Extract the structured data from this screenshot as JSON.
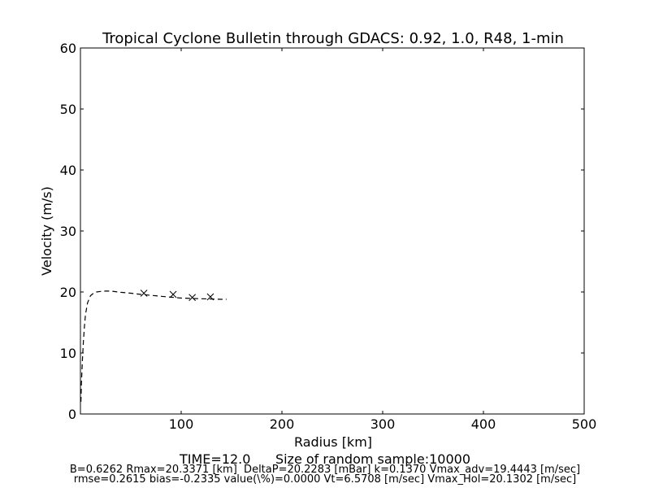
{
  "chart_data": {
    "type": "line",
    "title": "Tropical Cyclone Bulletin through GDACS: 0.92, 1.0, R48, 1-min",
    "xlabel": "Radius [km]",
    "ylabel": "Velocity (m/s)",
    "xlim": [
      0,
      500
    ],
    "ylim": [
      0,
      60
    ],
    "xticks": [
      100,
      200,
      300,
      400,
      500
    ],
    "yticks": [
      0,
      10,
      20,
      30,
      40,
      50,
      60
    ],
    "grid": false,
    "series": [
      {
        "style": "dashed-line",
        "color": "#000000",
        "x": [
          0.5,
          1,
          2,
          3,
          4,
          5,
          7,
          10,
          13,
          16,
          20,
          25,
          30,
          35,
          40,
          50,
          60,
          70,
          80,
          90,
          100,
          110,
          120,
          130,
          140,
          145
        ],
        "y": [
          2,
          5,
          9,
          12,
          14.5,
          16.3,
          18.2,
          19.4,
          19.8,
          20.0,
          20.1,
          20.15,
          20.15,
          20.05,
          19.95,
          19.8,
          19.6,
          19.45,
          19.3,
          19.15,
          19.0,
          18.95,
          18.9,
          18.85,
          18.8,
          18.8
        ]
      },
      {
        "style": "x-markers",
        "color": "#000000",
        "x": [
          63,
          92,
          111,
          129
        ],
        "y": [
          19.8,
          19.6,
          19.1,
          19.2
        ]
      }
    ]
  },
  "footer": {
    "time_line": "TIME=12.0      Size of random sample:10000",
    "params_line1": "B=0.6262 Rmax=20.3371 [km]  DeltaP=20.2283 [mBar] k=0.1370 Vmax_adv=19.4443 [m/sec]",
    "params_line2": "rmse=0.2615 bias=-0.2335 value(\\%)=0.0000 Vt=6.5708 [m/sec] Vmax_Hol=20.1302 [m/sec]"
  }
}
